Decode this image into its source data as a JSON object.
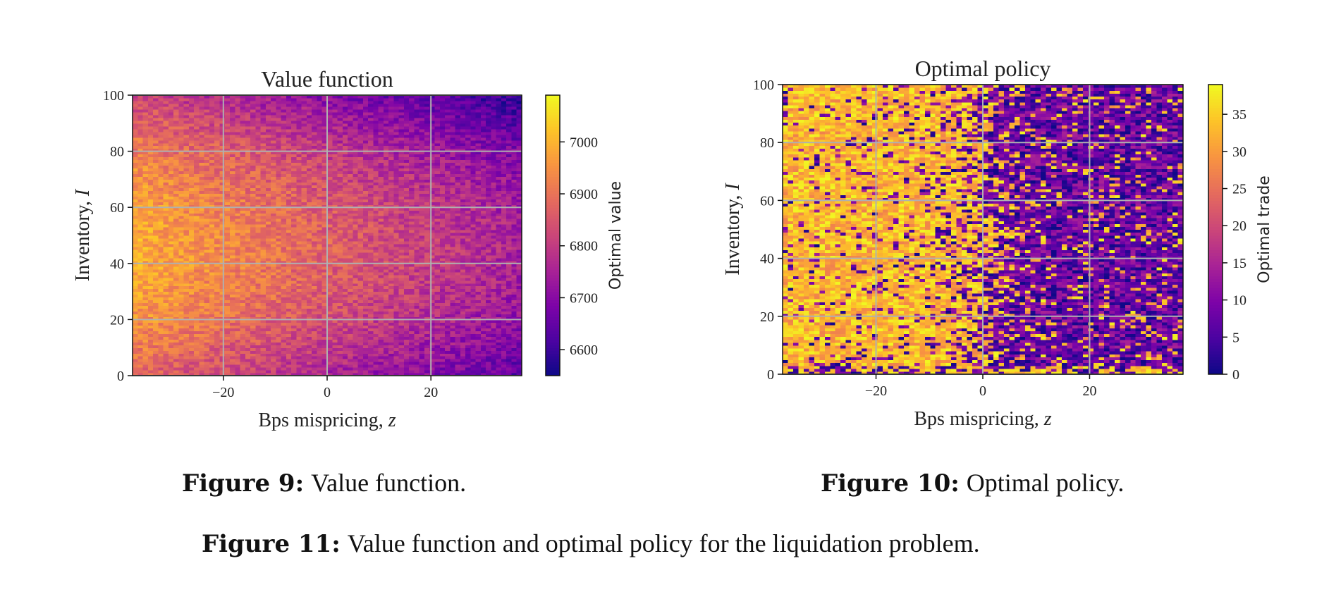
{
  "chart_data": [
    {
      "type": "heatmap",
      "title": "Value function",
      "xlabel": "Bps mispricing, z",
      "xlabel_text": "Bps mispricing,",
      "xlabel_var": "z",
      "ylabel": "Inventory, I",
      "ylabel_text": "Inventory,",
      "ylabel_var": "I",
      "xlim": [
        -37.5,
        37.5
      ],
      "ylim": [
        0,
        100
      ],
      "xticks": [
        -20,
        0,
        20
      ],
      "xtick_labels": [
        "−20",
        "0",
        "20"
      ],
      "yticks": [
        0,
        20,
        40,
        60,
        80,
        100
      ],
      "ytick_labels": [
        "0",
        "20",
        "40",
        "60",
        "80",
        "100"
      ],
      "colorbar": {
        "label": "Optimal value",
        "colormap": "plasma",
        "range": [
          6550,
          7090
        ],
        "ticks": [
          6600,
          6700,
          6800,
          6900,
          7000
        ],
        "tick_labels": [
          "6600",
          "6700",
          "6800",
          "6900",
          "7000"
        ]
      },
      "grid": true,
      "n_cols": 76,
      "n_rows": 100,
      "pattern": "values highest (~7000) at negative z and mid inventory (~40-50), decreasing toward positive z and top rows (~6650 near z=30, I=100)"
    },
    {
      "type": "heatmap",
      "title": "Optimal policy",
      "xlabel": "Bps mispricing, z",
      "xlabel_text": "Bps mispricing,",
      "xlabel_var": "z",
      "ylabel": "Inventory, I",
      "ylabel_text": "Inventory,",
      "ylabel_var": "I",
      "xlim": [
        -37.5,
        37.5
      ],
      "ylim": [
        0,
        100
      ],
      "xticks": [
        -20,
        0,
        20
      ],
      "xtick_labels": [
        "−20",
        "0",
        "20"
      ],
      "yticks": [
        0,
        20,
        40,
        60,
        80,
        100
      ],
      "ytick_labels": [
        "0",
        "20",
        "40",
        "60",
        "80",
        "100"
      ],
      "colorbar": {
        "label": "Optimal trade",
        "colormap": "plasma",
        "range": [
          0,
          39
        ],
        "ticks": [
          0,
          5,
          10,
          15,
          20,
          25,
          30,
          35
        ],
        "tick_labels": [
          "0",
          "5",
          "10",
          "15",
          "20",
          "25",
          "30",
          "35"
        ]
      },
      "grid": true,
      "n_cols": 76,
      "n_rows": 100,
      "pattern": "large trades (~30-39) at negative z, small trades (~0-10) at positive z, noisy transition near z=0"
    }
  ],
  "captions": {
    "fig9_label": "Figure 9:",
    "fig9_text": "Value function.",
    "fig10_label": "Figure 10:",
    "fig10_text": "Optimal policy.",
    "fig11_label": "Figure 11:",
    "fig11_text": "Value function and optimal policy for the liquidation problem."
  }
}
